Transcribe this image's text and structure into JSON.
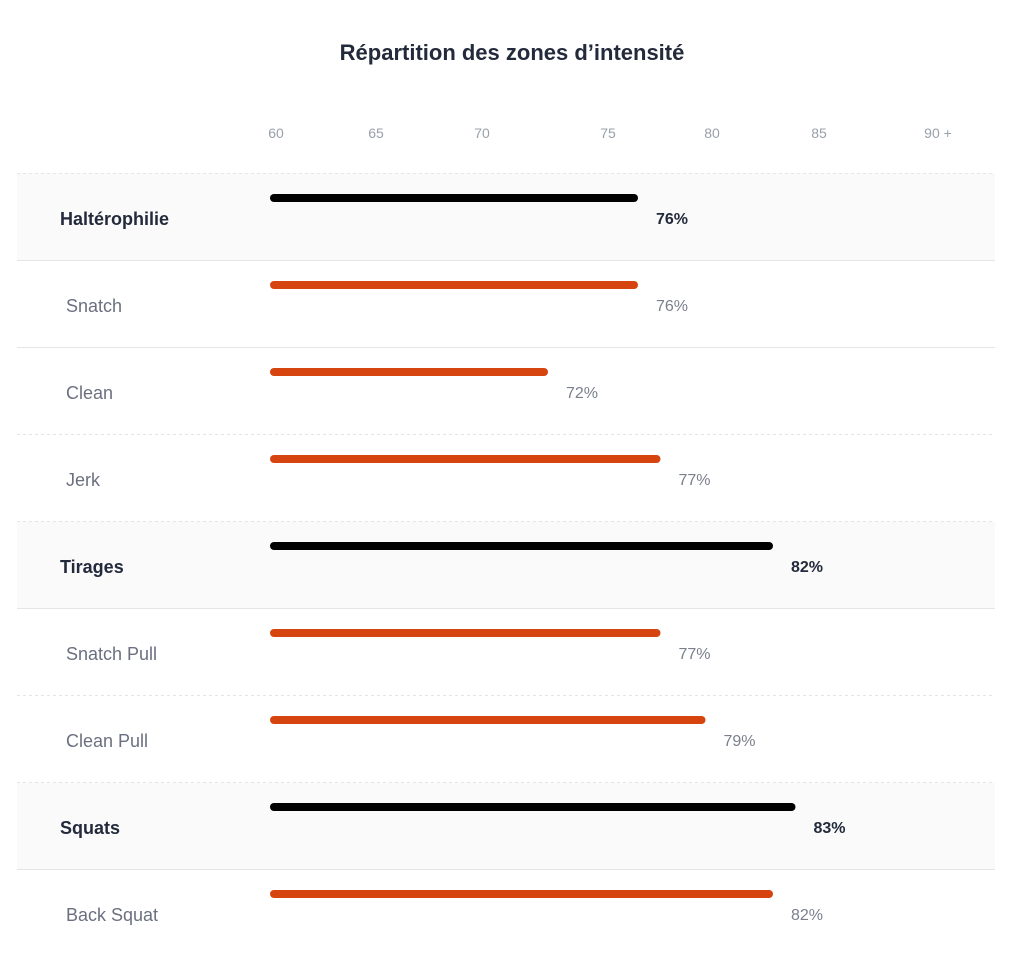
{
  "chart_data": {
    "type": "bar",
    "orientation": "horizontal",
    "title": "Répartition des zones d’intensité",
    "x_ticks": [
      "60",
      "65",
      "70",
      "75",
      "80",
      "85",
      "90 +"
    ],
    "xlim": [
      60,
      90
    ],
    "grid": false,
    "rows": [
      {
        "label": "Haltérophilie",
        "kind": "group",
        "value": 76,
        "value_label": "76%"
      },
      {
        "label": "Snatch",
        "kind": "item",
        "value": 76,
        "value_label": "76%"
      },
      {
        "label": "Clean",
        "kind": "item",
        "value": 72,
        "value_label": "72%"
      },
      {
        "label": "Jerk",
        "kind": "item",
        "value": 77,
        "value_label": "77%"
      },
      {
        "label": "Tirages",
        "kind": "group",
        "value": 82,
        "value_label": "82%"
      },
      {
        "label": "Snatch Pull",
        "kind": "item",
        "value": 77,
        "value_label": "77%"
      },
      {
        "label": "Clean Pull",
        "kind": "item",
        "value": 79,
        "value_label": "79%"
      },
      {
        "label": "Squats",
        "kind": "group",
        "value": 83,
        "value_label": "83%"
      },
      {
        "label": "Back Squat",
        "kind": "item",
        "value": 82,
        "value_label": "82%"
      }
    ],
    "colors": {
      "group_bar": "#000000",
      "item_bar": "#d6450f",
      "group_row_bg": "#fafafa"
    }
  }
}
